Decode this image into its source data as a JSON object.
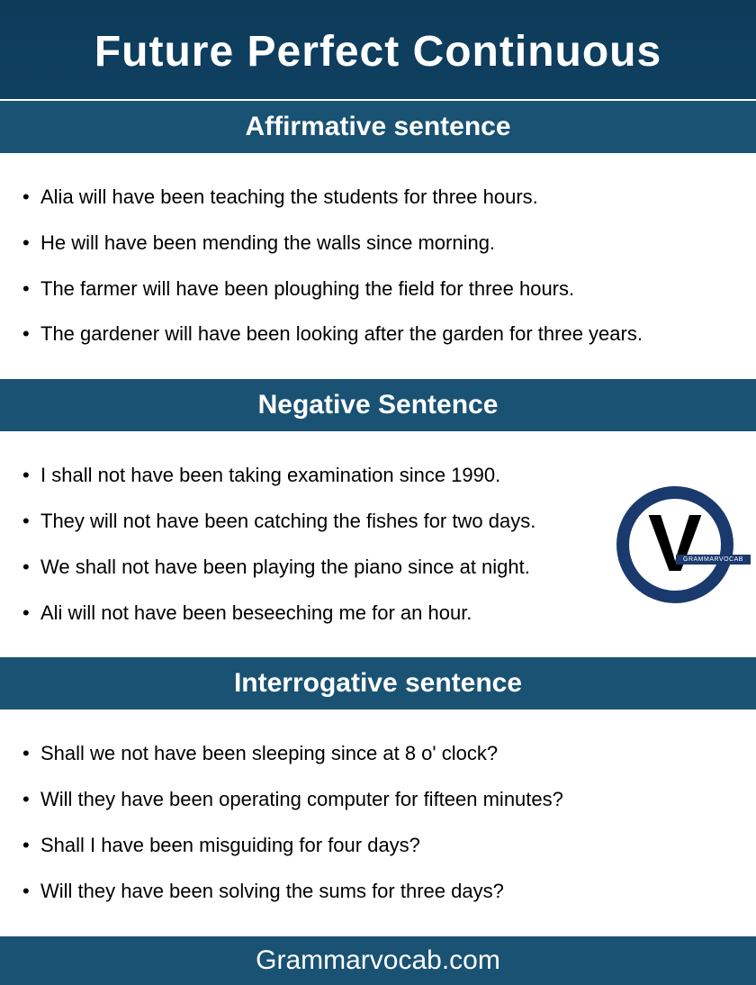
{
  "title": "Future Perfect Continuous",
  "colors": {
    "header_bg": "#195273",
    "content_bg": "#ffffff",
    "text_white": "#ffffff",
    "text_black": "#000000",
    "logo_ring": "#1a3a6e",
    "body_gradient_top": "#0d3b5a",
    "body_gradient_mid": "#1a5278"
  },
  "typography": {
    "title_fontsize": 48,
    "header_fontsize": 30,
    "item_fontsize": 22,
    "footer_fontsize": 30
  },
  "sections": [
    {
      "header": "Affirmative sentence",
      "items": [
        "Alia will have been teaching the students for three hours.",
        "He will have been mending the walls since morning.",
        "The farmer will have been ploughing the field for three hours.",
        "The gardener will have been looking after the garden for three years."
      ]
    },
    {
      "header": "Negative Sentence",
      "items": [
        "I shall not have been taking examination since 1990.",
        "They will not have been catching the fishes for two days.",
        "We shall not have been playing the piano since at night.",
        "Ali will not have been beseeching me for an hour."
      ]
    },
    {
      "header": "Interrogative sentence",
      "items": [
        "Shall we not have been sleeping since at 8 o' clock?",
        "Will they have been operating computer for fifteen minutes?",
        "Shall I have been misguiding for four days?",
        "Will they have been solving the sums for three days?"
      ]
    }
  ],
  "logo": {
    "letter": "V",
    "band_text": "GRAMMARVOCAB"
  },
  "footer": "Grammarvocab.com"
}
